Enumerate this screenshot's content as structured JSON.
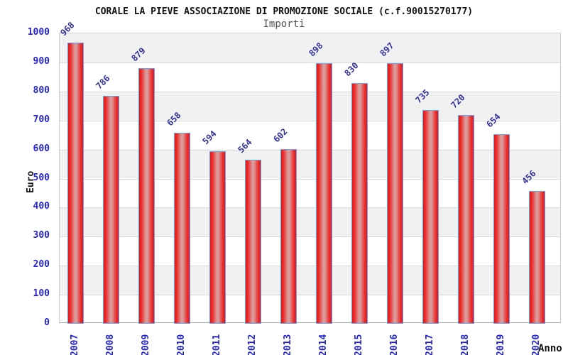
{
  "header": {
    "title": "CORALE LA PIEVE ASSOCIAZIONE DI PROMOZIONE SOCIALE (c.f.90015270177)",
    "subtitle": "Importi"
  },
  "chart_data": {
    "type": "bar",
    "title": "CORALE LA PIEVE ASSOCIAZIONE DI PROMOZIONE SOCIALE (c.f.90015270177)",
    "subtitle": "Importi",
    "xlabel": "Anno",
    "ylabel": "Euro",
    "categories": [
      "2007",
      "2008",
      "2009",
      "2010",
      "2011",
      "2012",
      "2013",
      "2014",
      "2015",
      "2016",
      "2017",
      "2018",
      "2019",
      "2020"
    ],
    "values": [
      968,
      786,
      879,
      658,
      594,
      564,
      602,
      898,
      830,
      897,
      735,
      720,
      654,
      456
    ],
    "ylim": [
      0,
      1000
    ],
    "ytick_step": 100,
    "grid": true,
    "legend": false,
    "plot_bands": "alternating horizontal 100-unit bands, gray on top band",
    "colors": {
      "bar_red": "#e01c1c",
      "bar_highlight": "#d99c9c",
      "bar_border": "#5fa8f0",
      "axis_label_blue": "#2424d6",
      "value_label_navy": "#31319c",
      "band_gray": "#f1f1f1",
      "gridline": "#d9d9d9",
      "title_color": "#111111",
      "subtitle_color": "#555555"
    }
  }
}
